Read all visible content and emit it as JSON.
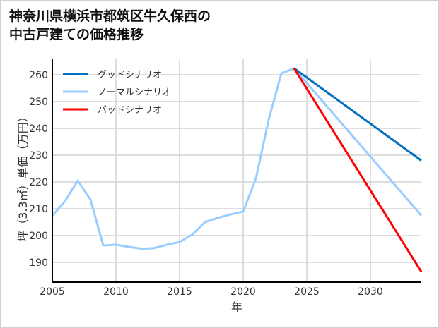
{
  "chart_data": {
    "type": "line",
    "title": "神奈川県横浜市都筑区牛久保西の中古戸建ての価格推移",
    "title_lines": [
      "神奈川県横浜市都筑区牛久保西の",
      "中古戸建ての価格推移"
    ],
    "xlabel": "年",
    "ylabel": "坪（3.3㎡）単価（万円）",
    "xlim": [
      2005,
      2034
    ],
    "ylim": [
      183,
      267
    ],
    "x_ticks": [
      2005,
      2010,
      2015,
      2020,
      2025,
      2030
    ],
    "y_ticks": [
      190,
      200,
      210,
      220,
      230,
      240,
      250,
      260
    ],
    "grid": true,
    "legend_position": "upper left",
    "series": [
      {
        "name": "グッドシナリオ",
        "color": "#0070c0",
        "x": [
          2024,
          2034
        ],
        "values": [
          262.4,
          228.0
        ]
      },
      {
        "name": "ノーマルシナリオ",
        "color": "#99ccff",
        "x": [
          2005,
          2006,
          2007,
          2008,
          2009,
          2010,
          2011,
          2012,
          2013,
          2014,
          2015,
          2016,
          2017,
          2018,
          2019,
          2020,
          2021,
          2022,
          2023,
          2024,
          2034
        ],
        "values": [
          207.4,
          212.9,
          220.5,
          213.4,
          196.3,
          196.6,
          195.8,
          195.1,
          195.3,
          196.6,
          197.6,
          200.4,
          205.0,
          206.6,
          207.9,
          209.0,
          221.3,
          243.2,
          260.5,
          262.4,
          207.5
        ]
      },
      {
        "name": "バッドシナリオ",
        "color": "#ff0000",
        "x": [
          2024,
          2034
        ],
        "values": [
          262.4,
          186.5
        ]
      }
    ]
  }
}
